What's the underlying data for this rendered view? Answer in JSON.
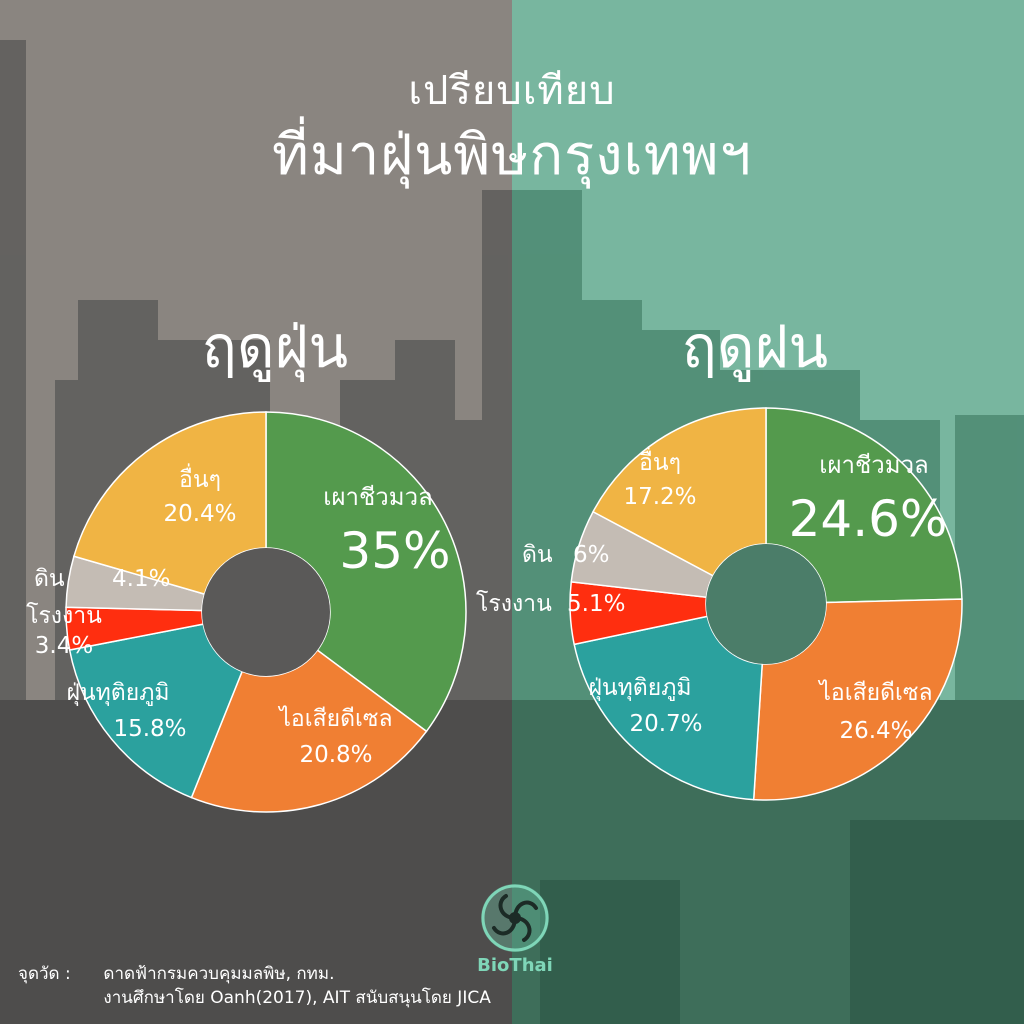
{
  "title": {
    "line1": "เปรียบเทียบ",
    "line2": "ที่มาฝุ่นพิษกรุงเทพฯ"
  },
  "colors": {
    "biomass": "#549a4d",
    "diesel": "#f07f33",
    "secondary": "#2ba19e",
    "factory": "#ff2e0f",
    "soil": "#c4bcb4",
    "others": "#f0b444",
    "left_bg": "#8c8782",
    "right_bg": "#7ab8a0",
    "logo": "#7fd6b8"
  },
  "chart_data": [
    {
      "type": "pie",
      "title": "ฤดูฝุ่น",
      "categories": [
        "เผาชีวมวล",
        "ไอเสียดีเซล",
        "ฝุ่นทุติยภูมิ",
        "โรงงาน",
        "ดิน",
        "อื่นๆ"
      ],
      "values": [
        35,
        20.8,
        15.8,
        3.4,
        4.1,
        20.4
      ],
      "labels": [
        "35%",
        "20.8%",
        "15.8%",
        "3.4%",
        "4.1%",
        "20.4%"
      ]
    },
    {
      "type": "pie",
      "title": "ฤดูฝน",
      "categories": [
        "เผาชีวมวล",
        "ไอเสียดีเซล",
        "ฝุ่นทุติยภูมิ",
        "โรงงาน",
        "ดิน",
        "อื่นๆ"
      ],
      "values": [
        24.6,
        26.4,
        20.7,
        5.1,
        6,
        17.2
      ],
      "labels": [
        "24.6%",
        "26.4%",
        "20.7%",
        "5.1%",
        "6%",
        "17.2%"
      ]
    }
  ],
  "logo": {
    "text": "BioThai",
    "icon": "swirl-logo-icon"
  },
  "source": {
    "label": "จุดวัด :",
    "line1": "ดาดฟ้ากรมควบคุมมลพิษ, กทม.",
    "line2": "งานศึกษาโดย Oanh(2017), AIT สนับสนุนโดย JICA"
  }
}
